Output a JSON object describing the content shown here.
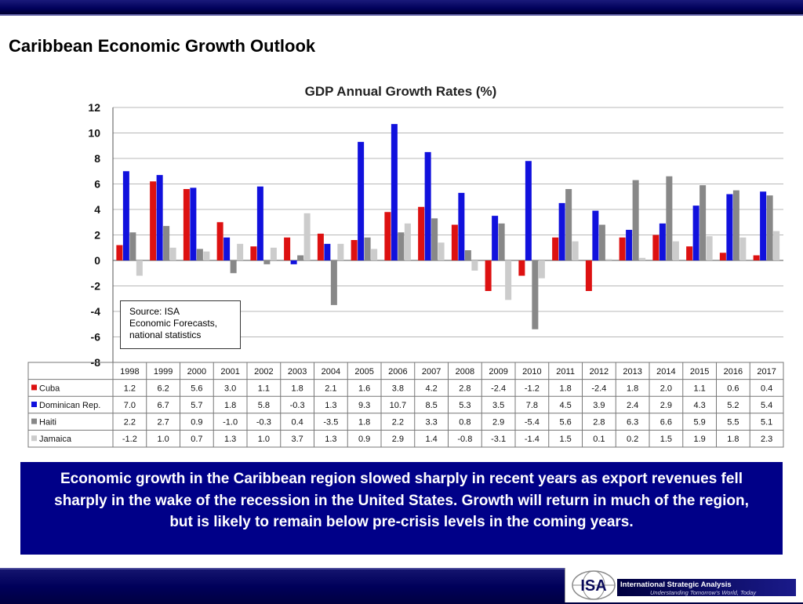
{
  "slide": {
    "title": "Caribbean Economic Growth Outlook",
    "summary": "Economic growth in the Caribbean region slowed sharply in recent years as export revenues fell sharply in the wake of the recession in the United States.  Growth will return in much of the region, but is likely to remain below pre-crisis levels in the coming years."
  },
  "source_note": {
    "line1": "Source: ISA",
    "line2": "Economic Forecasts,",
    "line3": "national statistics"
  },
  "logo": {
    "mark_text": "ISA",
    "name": "International Strategic Analysis",
    "tagline": "Understanding Tomorrow's World, Today"
  },
  "chart_data": {
    "type": "bar",
    "title": "GDP Annual Growth Rates (%)",
    "categories": [
      "1998",
      "1999",
      "2000",
      "2001",
      "2002",
      "2003",
      "2004",
      "2005",
      "2006",
      "2007",
      "2008",
      "2009",
      "2010",
      "2011",
      "2012",
      "2013",
      "2014",
      "2015",
      "2016",
      "2017"
    ],
    "series": [
      {
        "name": "Cuba",
        "color": "#dd1111",
        "values": [
          1.2,
          6.2,
          5.6,
          3.0,
          1.1,
          1.8,
          2.1,
          1.6,
          3.8,
          4.2,
          2.8,
          -2.4,
          -1.2,
          1.8,
          -2.4,
          1.8,
          2.0,
          1.1,
          0.6,
          0.4
        ]
      },
      {
        "name": "Dominican Rep.",
        "color": "#1111dd",
        "values": [
          7.0,
          6.7,
          5.7,
          1.8,
          5.8,
          -0.3,
          1.3,
          9.3,
          10.7,
          8.5,
          5.3,
          3.5,
          7.8,
          4.5,
          3.9,
          2.4,
          2.9,
          4.3,
          5.2,
          5.4
        ]
      },
      {
        "name": "Haiti",
        "color": "#888888",
        "values": [
          2.2,
          2.7,
          0.9,
          -1.0,
          -0.3,
          0.4,
          -3.5,
          1.8,
          2.2,
          3.3,
          0.8,
          2.9,
          -5.4,
          5.6,
          2.8,
          6.3,
          6.6,
          5.9,
          5.5,
          5.1
        ]
      },
      {
        "name": "Jamaica",
        "color": "#cccccc",
        "values": [
          -1.2,
          1.0,
          0.7,
          1.3,
          1.0,
          3.7,
          1.3,
          0.9,
          2.9,
          1.4,
          -0.8,
          -3.1,
          -1.4,
          1.5,
          0.1,
          0.2,
          1.5,
          1.9,
          1.8,
          2.3
        ]
      }
    ],
    "value_labels": [
      [
        "1.2",
        "6.2",
        "5.6",
        "3.0",
        "1.1",
        "1.8",
        "2.1",
        "1.6",
        "3.8",
        "4.2",
        "2.8",
        "-2.4",
        "-1.2",
        "1.8",
        "-2.4",
        "1.8",
        "2.0",
        "1.1",
        "0.6",
        "0.4"
      ],
      [
        "7.0",
        "6.7",
        "5.7",
        "1.8",
        "5.8",
        "-0.3",
        "1.3",
        "9.3",
        "10.7",
        "8.5",
        "5.3",
        "3.5",
        "7.8",
        "4.5",
        "3.9",
        "2.4",
        "2.9",
        "4.3",
        "5.2",
        "5.4"
      ],
      [
        "2.2",
        "2.7",
        "0.9",
        "-1.0",
        "-0.3",
        "0.4",
        "-3.5",
        "1.8",
        "2.2",
        "3.3",
        "0.8",
        "2.9",
        "-5.4",
        "5.6",
        "2.8",
        "6.3",
        "6.6",
        "5.9",
        "5.5",
        "5.1"
      ],
      [
        "-1.2",
        "1.0",
        "0.7",
        "1.3",
        "1.0",
        "3.7",
        "1.3",
        "0.9",
        "2.9",
        "1.4",
        "-0.8",
        "-3.1",
        "-1.4",
        "1.5",
        "0.1",
        "0.2",
        "1.5",
        "1.9",
        "1.8",
        "2.3"
      ]
    ],
    "ylim": [
      -8,
      12
    ],
    "yticks": [
      "12",
      "10",
      "8",
      "6",
      "4",
      "2",
      "0",
      "-2",
      "-4",
      "-6",
      "-8"
    ],
    "xlabel": "",
    "ylabel": "",
    "grid": true,
    "legend": "data table below chart"
  }
}
